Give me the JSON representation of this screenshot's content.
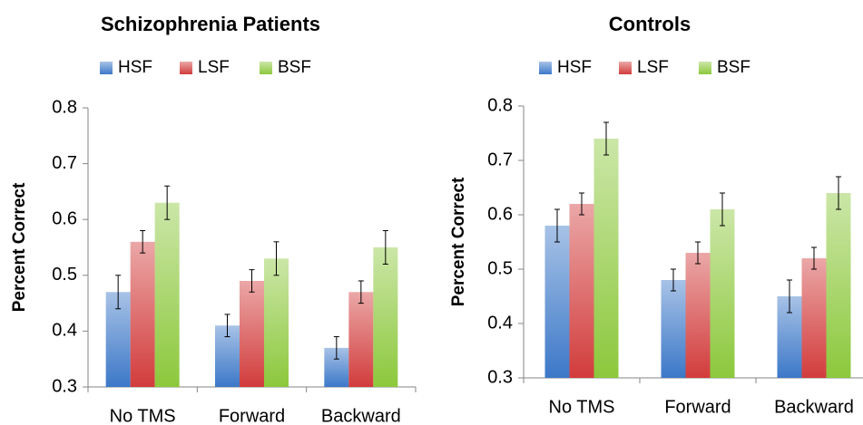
{
  "chart_data": [
    {
      "type": "bar",
      "title": "Schizophrenia Patients",
      "y_label": "Percent Correct",
      "categories": [
        "No TMS",
        "Forward",
        "Backward"
      ],
      "series": [
        {
          "name": "HSF",
          "color": "#3c78c8",
          "values": [
            0.47,
            0.41,
            0.37
          ],
          "errors": [
            0.03,
            0.02,
            0.02
          ]
        },
        {
          "name": "LSF",
          "color": "#d23c3c",
          "values": [
            0.56,
            0.49,
            0.47
          ],
          "errors": [
            0.02,
            0.02,
            0.02
          ]
        },
        {
          "name": "BSF",
          "color": "#8cc83c",
          "values": [
            0.63,
            0.53,
            0.55
          ],
          "errors": [
            0.03,
            0.03,
            0.03
          ]
        }
      ],
      "ylim": [
        0.3,
        0.8
      ],
      "yticks": [
        0.3,
        0.4,
        0.5,
        0.6,
        0.7,
        0.8
      ],
      "grid": false
    },
    {
      "type": "bar",
      "title": "Controls",
      "y_label": "Percent Correct",
      "categories": [
        "No TMS",
        "Forward",
        "Backward"
      ],
      "series": [
        {
          "name": "HSF",
          "color": "#3c78c8",
          "values": [
            0.58,
            0.48,
            0.45
          ],
          "errors": [
            0.03,
            0.02,
            0.03
          ]
        },
        {
          "name": "LSF",
          "color": "#d23c3c",
          "values": [
            0.62,
            0.53,
            0.52
          ],
          "errors": [
            0.02,
            0.02,
            0.02
          ]
        },
        {
          "name": "BSF",
          "color": "#8cc83c",
          "values": [
            0.74,
            0.61,
            0.64
          ],
          "errors": [
            0.03,
            0.03,
            0.03
          ]
        }
      ],
      "ylim": [
        0.3,
        0.8
      ],
      "yticks": [
        0.3,
        0.4,
        0.5,
        0.6,
        0.7,
        0.8
      ],
      "grid": false
    }
  ]
}
